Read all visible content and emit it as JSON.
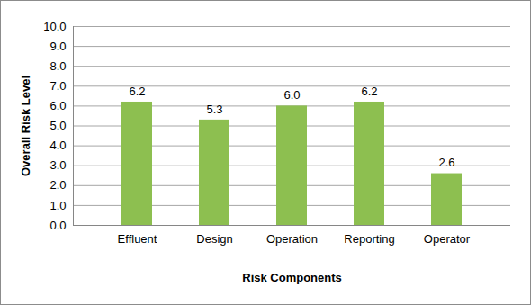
{
  "chart_data": {
    "type": "bar",
    "x_label": "Risk Components",
    "y_label": "Overall Risk Level",
    "categories": [
      "Effluent",
      "Design",
      "Operation",
      "Reporting",
      "Operator"
    ],
    "values": [
      6.2,
      5.3,
      6.0,
      6.2,
      2.6
    ],
    "value_labels": [
      "6.2",
      "5.3",
      "6.0",
      "6.2",
      "2.6"
    ],
    "data_labels": true,
    "color": "#8dbf50",
    "ylim": [
      0,
      10
    ],
    "yticks": [
      {
        "value": 0,
        "label": "0.0"
      },
      {
        "value": 1,
        "label": "1.0"
      },
      {
        "value": 2,
        "label": "2.0"
      },
      {
        "value": 3,
        "label": "3.0"
      },
      {
        "value": 4,
        "label": "4.0"
      },
      {
        "value": 5,
        "label": "5.0"
      },
      {
        "value": 6,
        "label": "6.0"
      },
      {
        "value": 7,
        "label": "7.0"
      },
      {
        "value": 8,
        "label": "8.0"
      },
      {
        "value": 9,
        "label": "9.0"
      },
      {
        "value": 10,
        "label": "10.0"
      }
    ],
    "grid": true
  }
}
